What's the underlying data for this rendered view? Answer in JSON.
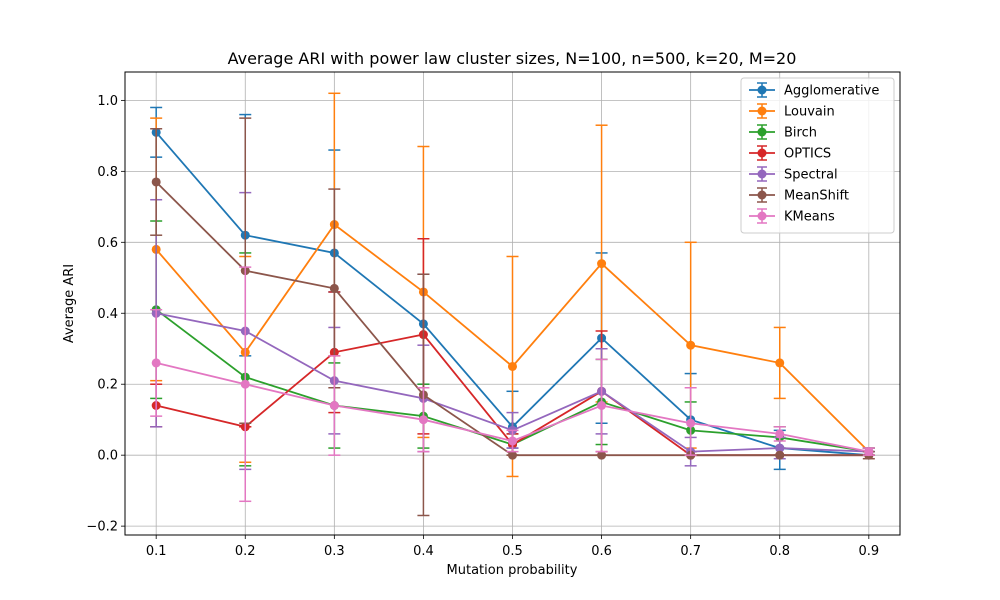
{
  "chart_data": {
    "type": "line",
    "title": "Average ARI with power law cluster sizes, N=100, n=500, k=20, M=20",
    "xlabel": "Mutation probability",
    "ylabel": "Average ARI",
    "x": [
      0.1,
      0.2,
      0.3,
      0.4,
      0.5,
      0.6,
      0.7,
      0.8,
      0.9
    ],
    "x_ticks": [
      "0.1",
      "0.2",
      "0.3",
      "0.4",
      "0.5",
      "0.6",
      "0.7",
      "0.8",
      "0.9"
    ],
    "y_ticks": [
      "−0.2",
      "0.0",
      "0.2",
      "0.4",
      "0.6",
      "0.8",
      "1.0"
    ],
    "y_tick_values": [
      -0.2,
      0.0,
      0.2,
      0.4,
      0.6,
      0.8,
      1.0
    ],
    "xlim": [
      0.065,
      0.935
    ],
    "ylim": [
      -0.225,
      1.08
    ],
    "grid": true,
    "legend_position": "top-right",
    "series": [
      {
        "name": "Agglomerative",
        "color": "#1f77b4",
        "values": [
          0.91,
          0.62,
          0.57,
          0.37,
          0.08,
          0.33,
          0.1,
          0.02,
          0.0
        ],
        "err_low": [
          0.84,
          0.28,
          0.46,
          0.2,
          0.02,
          0.09,
          0.01,
          -0.04,
          0.0
        ],
        "err_high": [
          0.98,
          0.96,
          0.86,
          0.51,
          0.18,
          0.57,
          0.23,
          0.07,
          0.01
        ]
      },
      {
        "name": "Louvain",
        "color": "#ff7f0e",
        "values": [
          0.58,
          0.29,
          0.65,
          0.46,
          0.25,
          0.54,
          0.31,
          0.26,
          0.01
        ],
        "err_low": [
          0.21,
          -0.02,
          0.28,
          0.05,
          -0.06,
          0.15,
          0.02,
          0.16,
          0.0
        ],
        "err_high": [
          0.95,
          0.56,
          1.02,
          0.87,
          0.56,
          0.93,
          0.6,
          0.36,
          0.02
        ]
      },
      {
        "name": "Birch",
        "color": "#2ca02c",
        "values": [
          0.41,
          0.22,
          0.14,
          0.11,
          0.03,
          0.15,
          0.07,
          0.05,
          0.01
        ],
        "err_low": [
          0.16,
          -0.03,
          0.02,
          0.02,
          0.0,
          0.03,
          0.0,
          0.02,
          0.0
        ],
        "err_high": [
          0.66,
          0.57,
          0.26,
          0.2,
          0.06,
          0.27,
          0.15,
          0.08,
          0.02
        ]
      },
      {
        "name": "OPTICS",
        "color": "#d62728",
        "values": [
          0.14,
          0.08,
          0.29,
          0.34,
          0.03,
          0.18,
          0.0,
          0.0,
          0.0
        ],
        "err_low": [
          0.08,
          0.08,
          0.12,
          0.06,
          0.0,
          0.01,
          0.0,
          0.0,
          0.0
        ],
        "err_high": [
          0.2,
          0.08,
          0.46,
          0.61,
          0.06,
          0.35,
          0.01,
          0.0,
          0.0
        ]
      },
      {
        "name": "Spectral",
        "color": "#9467bd",
        "values": [
          0.4,
          0.35,
          0.21,
          0.16,
          0.07,
          0.18,
          0.01,
          0.02,
          0.01
        ],
        "err_low": [
          0.08,
          -0.04,
          0.06,
          0.01,
          0.02,
          0.06,
          -0.03,
          -0.01,
          0.0
        ],
        "err_high": [
          0.72,
          0.74,
          0.36,
          0.31,
          0.12,
          0.3,
          0.05,
          0.05,
          0.02
        ]
      },
      {
        "name": "MeanShift",
        "color": "#8c564b",
        "values": [
          0.77,
          0.52,
          0.47,
          0.17,
          0.0,
          0.0,
          0.0,
          0.0,
          0.0
        ],
        "err_low": [
          0.62,
          0.09,
          0.19,
          -0.17,
          0.0,
          0.0,
          0.0,
          0.0,
          -0.01
        ],
        "err_high": [
          0.92,
          0.95,
          0.75,
          0.51,
          0.0,
          0.0,
          0.0,
          0.0,
          0.01
        ]
      },
      {
        "name": "KMeans",
        "color": "#e377c2",
        "values": [
          0.26,
          0.2,
          0.14,
          0.1,
          0.04,
          0.14,
          0.09,
          0.06,
          0.01
        ],
        "err_low": [
          0.11,
          -0.13,
          0.0,
          0.01,
          0.01,
          0.01,
          0.0,
          0.04,
          0.0
        ],
        "err_high": [
          0.41,
          0.53,
          0.28,
          0.19,
          0.07,
          0.27,
          0.19,
          0.08,
          0.02
        ]
      }
    ]
  }
}
